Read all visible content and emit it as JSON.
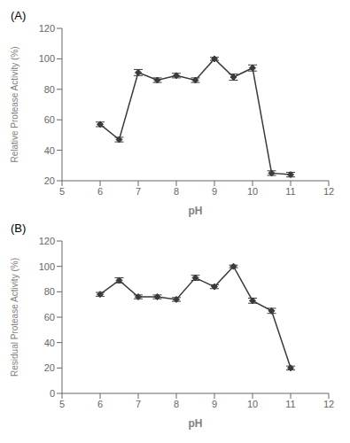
{
  "chart_data": [
    {
      "type": "line",
      "annotations": [
        "(A)"
      ],
      "xlabel": "pH",
      "ylabel": "Relative Protease Activity (%)",
      "x": [
        6.0,
        6.5,
        7.0,
        7.5,
        8.0,
        8.5,
        9.0,
        9.5,
        10.0,
        10.5,
        11.0
      ],
      "values": [
        57,
        47,
        91,
        86,
        89,
        86,
        100,
        88,
        94,
        25,
        24
      ],
      "errors": [
        1.5,
        1.5,
        2.0,
        1.5,
        1.5,
        1.5,
        1.0,
        2.0,
        2.0,
        1.5,
        1.5
      ],
      "color": "#3a3a3a",
      "marker": "diamond",
      "xlim": [
        5,
        12
      ],
      "ylim": [
        20,
        120
      ],
      "xticks": [
        5,
        6,
        7,
        8,
        9,
        10,
        11,
        12
      ],
      "yticks": [
        20,
        40,
        60,
        80,
        100,
        120
      ],
      "grid": false
    },
    {
      "type": "line",
      "annotations": [
        "(B)"
      ],
      "xlabel": "pH",
      "ylabel": "Residual Protease Activity (%)",
      "x": [
        6.0,
        6.5,
        7.0,
        7.5,
        8.0,
        8.5,
        9.0,
        9.5,
        10.0,
        10.5,
        11.0
      ],
      "values": [
        78,
        89,
        76,
        76,
        74,
        91,
        84,
        100,
        73,
        65,
        20
      ],
      "errors": [
        1.5,
        2.0,
        1.5,
        1.5,
        1.5,
        2.0,
        1.5,
        1.0,
        2.0,
        2.0,
        1.5
      ],
      "color": "#3a3a3a",
      "marker": "diamond",
      "xlim": [
        5,
        12
      ],
      "ylim": [
        0,
        120
      ],
      "xticks": [
        5,
        6,
        7,
        8,
        9,
        10,
        11,
        12
      ],
      "yticks": [
        0,
        20,
        40,
        60,
        80,
        100,
        120
      ],
      "grid": false
    }
  ]
}
